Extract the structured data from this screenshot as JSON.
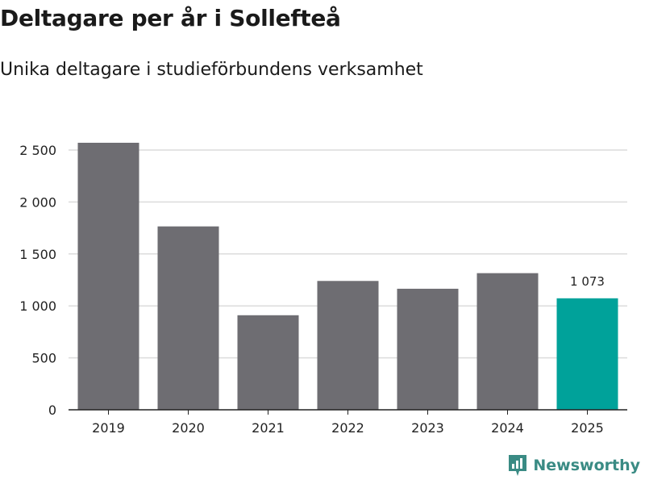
{
  "header": {
    "title": "Deltagare per år i Sollefteå",
    "subtitle": "Unika deltagare i studieförbundens verksamhet"
  },
  "brand": {
    "name": "Newsworthy",
    "logo_icon": "bar-chart-badge-icon",
    "color": "#3a8b84"
  },
  "colors": {
    "bar": "#6e6d72",
    "highlight": "#00a29a",
    "grid": "#dcdcdc",
    "axis": "#222222"
  },
  "chart_data": {
    "type": "bar",
    "title": "Deltagare per år i Sollefteå",
    "subtitle": "Unika deltagare i studieförbundens verksamhet",
    "xlabel": "",
    "ylabel": "",
    "categories": [
      "2019",
      "2020",
      "2021",
      "2022",
      "2023",
      "2024",
      "2025"
    ],
    "values": [
      2570,
      1765,
      910,
      1240,
      1165,
      1315,
      1073
    ],
    "highlight_index": 6,
    "data_labels": [
      {
        "index": 6,
        "text": "1 073"
      }
    ],
    "ylim": [
      0,
      2500
    ],
    "yticks": [
      0,
      500,
      1000,
      1500,
      2000,
      2500
    ],
    "ytick_labels": [
      "0",
      "500",
      "1 000",
      "1 500",
      "2 000",
      "2 500"
    ],
    "grid": true,
    "legend": "none"
  }
}
